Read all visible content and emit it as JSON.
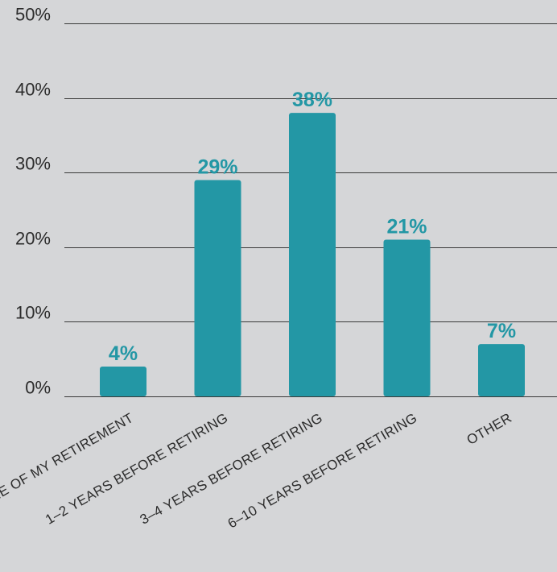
{
  "chart_data": {
    "type": "bar",
    "title": "",
    "xlabel": "",
    "ylabel": "",
    "categories": [
      "AT THE TIME OF MY RETIREMENT",
      "1–2 YEARS BEFORE RETIRING",
      "3–4 YEARS BEFORE RETIRING",
      "6–10 YEARS BEFORE RETIRING",
      "OTHER"
    ],
    "values": [
      4,
      29,
      38,
      21,
      7
    ],
    "data_labels": [
      "4%",
      "29%",
      "38%",
      "21%",
      "7%"
    ],
    "ylim": [
      0,
      50
    ],
    "y_ticks": [
      0,
      10,
      20,
      30,
      40,
      50
    ],
    "y_tick_labels": [
      "0%",
      "10%",
      "20%",
      "30%",
      "40%",
      "50%"
    ],
    "grid": true,
    "legend": "none"
  },
  "colors": {
    "background": "#d5d6d8",
    "bar": "#2397a5",
    "data_label": "#2397a5",
    "grid": "#3a3a3a",
    "text": "#2c2c2c"
  }
}
